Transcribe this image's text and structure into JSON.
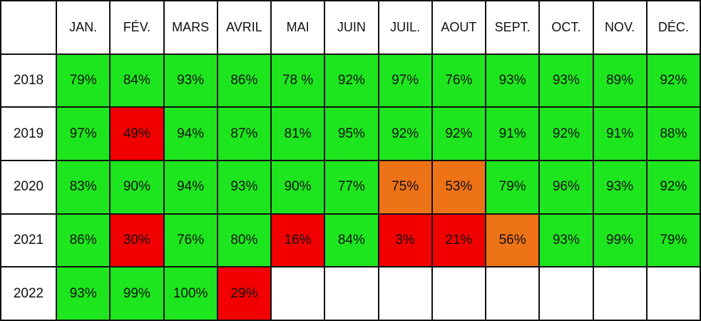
{
  "table": {
    "header": [
      "JAN.",
      "FÉV.",
      "MARS",
      "AVRIL",
      "MAI",
      "JUIN",
      "JUIL.",
      "AOUT",
      "SEPT.",
      "OCT.",
      "NOV.",
      "DÉC."
    ],
    "rows": [
      {
        "year": "2018",
        "cells": [
          {
            "text": "79%",
            "fill": "#1ee61e"
          },
          {
            "text": "84%",
            "fill": "#1ee61e"
          },
          {
            "text": "93%",
            "fill": "#1ee61e"
          },
          {
            "text": "86%",
            "fill": "#1ee61e"
          },
          {
            "text": "78 %",
            "fill": "#1ee61e"
          },
          {
            "text": "92%",
            "fill": "#1ee61e"
          },
          {
            "text": "97%",
            "fill": "#1ee61e"
          },
          {
            "text": "76%",
            "fill": "#1ee61e"
          },
          {
            "text": "93%",
            "fill": "#1ee61e"
          },
          {
            "text": "93%",
            "fill": "#1ee61e"
          },
          {
            "text": "89%",
            "fill": "#1ee61e"
          },
          {
            "text": "92%",
            "fill": "#1ee61e"
          }
        ]
      },
      {
        "year": "2019",
        "cells": [
          {
            "text": "97%",
            "fill": "#1ee61e"
          },
          {
            "text": "49%",
            "fill": "#f20000"
          },
          {
            "text": "94%",
            "fill": "#1ee61e"
          },
          {
            "text": "87%",
            "fill": "#1ee61e"
          },
          {
            "text": "81%",
            "fill": "#1ee61e"
          },
          {
            "text": "95%",
            "fill": "#1ee61e"
          },
          {
            "text": "92%",
            "fill": "#1ee61e"
          },
          {
            "text": "92%",
            "fill": "#1ee61e"
          },
          {
            "text": "91%",
            "fill": "#1ee61e"
          },
          {
            "text": "92%",
            "fill": "#1ee61e"
          },
          {
            "text": "91%",
            "fill": "#1ee61e"
          },
          {
            "text": "88%",
            "fill": "#1ee61e"
          }
        ]
      },
      {
        "year": "2020",
        "cells": [
          {
            "text": "83%",
            "fill": "#1ee61e"
          },
          {
            "text": "90%",
            "fill": "#1ee61e"
          },
          {
            "text": "94%",
            "fill": "#1ee61e"
          },
          {
            "text": "93%",
            "fill": "#1ee61e"
          },
          {
            "text": "90%",
            "fill": "#1ee61e"
          },
          {
            "text": "77%",
            "fill": "#1ee61e"
          },
          {
            "text": "75%",
            "fill": "#ee7216"
          },
          {
            "text": "53%",
            "fill": "#ee7216"
          },
          {
            "text": "79%",
            "fill": "#1ee61e"
          },
          {
            "text": "96%",
            "fill": "#1ee61e"
          },
          {
            "text": "93%",
            "fill": "#1ee61e"
          },
          {
            "text": "92%",
            "fill": "#1ee61e"
          }
        ]
      },
      {
        "year": "2021",
        "cells": [
          {
            "text": "86%",
            "fill": "#1ee61e"
          },
          {
            "text": "30%",
            "fill": "#f20000"
          },
          {
            "text": "76%",
            "fill": "#1ee61e"
          },
          {
            "text": "80%",
            "fill": "#1ee61e"
          },
          {
            "text": "16%",
            "fill": "#f20000"
          },
          {
            "text": "84%",
            "fill": "#1ee61e"
          },
          {
            "text": "3%",
            "fill": "#f20000"
          },
          {
            "text": "21%",
            "fill": "#f20000"
          },
          {
            "text": "56%",
            "fill": "#ee7216"
          },
          {
            "text": "93%",
            "fill": "#1ee61e"
          },
          {
            "text": "99%",
            "fill": "#1ee61e"
          },
          {
            "text": "79%",
            "fill": "#1ee61e"
          }
        ]
      },
      {
        "year": "2022",
        "cells": [
          {
            "text": "93%",
            "fill": "#1ee61e"
          },
          {
            "text": "99%",
            "fill": "#1ee61e"
          },
          {
            "text": "100%",
            "fill": "#1ee61e"
          },
          {
            "text": "29%",
            "fill": "#f20000"
          },
          null,
          null,
          null,
          null,
          null,
          null,
          null,
          null
        ]
      }
    ]
  }
}
